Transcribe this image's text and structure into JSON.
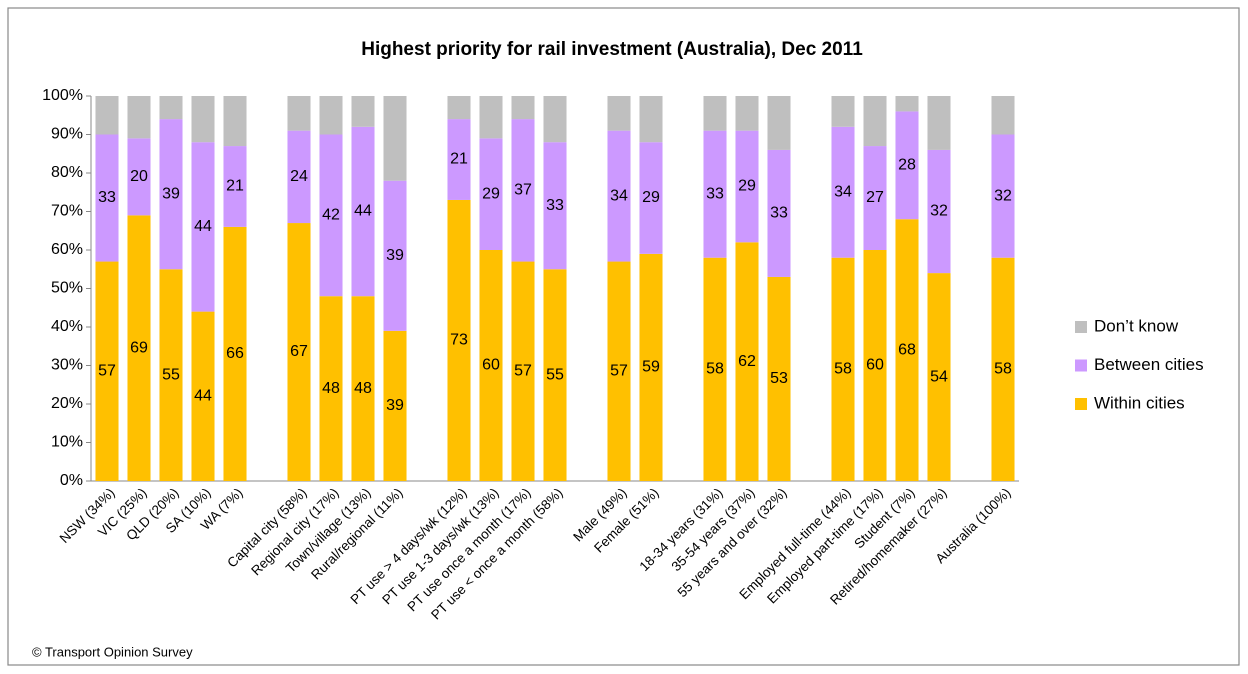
{
  "chart_data": {
    "type": "stacked_bar",
    "title": "Highest priority for rail investment (Australia), Dec 2011",
    "source": "© Transport Opinion Survey",
    "categories": [
      "NSW (34%)",
      "VIC (25%)",
      "QLD (20%)",
      "SA (10%)",
      "WA (7%)",
      null,
      "Capital city (58%)",
      "Regional city (17%)",
      "Town/village (13%)",
      "Rural/regional (11%)",
      null,
      "PT use > 4 days/wk (12%)",
      "PT use 1-3 days/wk (13%)",
      "PT use once a month (17%)",
      "PT use < once a month (58%)",
      null,
      "Male (49%)",
      "Female (51%)",
      null,
      "18-34 years (31%)",
      "35-54 years (37%)",
      "55 years and over (32%)",
      null,
      "Employed full-time (44%)",
      "Employed part-time (17%)",
      "Student (7%)",
      "Retired/homemaker (27%)",
      null,
      "Australia (100%)"
    ],
    "series": [
      {
        "name": "Within cities",
        "color": "#ffc000",
        "labels": true,
        "values": [
          57,
          69,
          55,
          44,
          66,
          null,
          67,
          48,
          48,
          39,
          null,
          73,
          60,
          57,
          55,
          null,
          57,
          59,
          null,
          58,
          62,
          53,
          null,
          58,
          60,
          68,
          54,
          null,
          58
        ]
      },
      {
        "name": "Between cities",
        "color": "#cc99ff",
        "labels": true,
        "values": [
          33,
          20,
          39,
          44,
          21,
          null,
          24,
          42,
          44,
          39,
          null,
          21,
          29,
          37,
          33,
          null,
          34,
          29,
          null,
          33,
          29,
          33,
          null,
          34,
          27,
          28,
          32,
          null,
          32
        ]
      },
      {
        "name": "Don’t know",
        "color": "#bfbfbf",
        "labels": false,
        "values": [
          10,
          11,
          6,
          12,
          13,
          null,
          9,
          10,
          8,
          22,
          null,
          6,
          11,
          6,
          12,
          null,
          9,
          12,
          null,
          9,
          9,
          14,
          null,
          8,
          13,
          4,
          14,
          null,
          10
        ]
      }
    ],
    "ylim": [
      0,
      100
    ],
    "yticks": [
      {
        "value": 0,
        "label": "0%"
      },
      {
        "value": 10,
        "label": "10%"
      },
      {
        "value": 20,
        "label": "20%"
      },
      {
        "value": 30,
        "label": "30%"
      },
      {
        "value": 40,
        "label": "40%"
      },
      {
        "value": 50,
        "label": "50%"
      },
      {
        "value": 60,
        "label": "60%"
      },
      {
        "value": 70,
        "label": "70%"
      },
      {
        "value": 80,
        "label": "80%"
      },
      {
        "value": 90,
        "label": "90%"
      },
      {
        "value": 100,
        "label": "100%"
      }
    ],
    "grid": false,
    "legend": "right"
  }
}
